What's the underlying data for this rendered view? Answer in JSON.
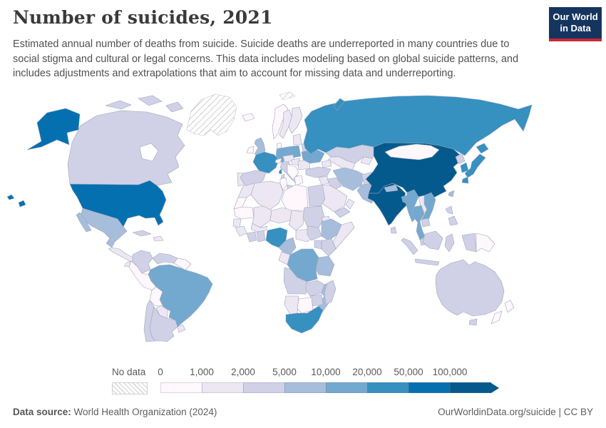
{
  "header": {
    "title": "Number of suicides, 2021",
    "subtitle": "Estimated annual number of deaths from suicide. Suicide deaths are underreported in many countries due to social stigma and cultural or legal concerns. This data includes modeling based on global suicide patterns, and includes adjustments and extrapolations that aim to account for missing data and underreporting.",
    "logo": {
      "line1": "Our World",
      "line2": "in Data",
      "bg_color": "#15355f",
      "accent_color": "#c5293b"
    }
  },
  "footer": {
    "source_label": "Data source:",
    "source_value": " World Health Organization (2024)",
    "attribution": "OurWorldinData.org/suicide | CC BY"
  },
  "chart_data": {
    "type": "choropleth_map",
    "title": "Number of suicides, 2021",
    "year": "2021",
    "metric": "Estimated annual number of deaths from suicide",
    "no_data_label": "No data",
    "legend_ticks": [
      "0",
      "1,000",
      "2,000",
      "5,000",
      "10,000",
      "20,000",
      "50,000",
      "100,000"
    ],
    "bins": [
      {
        "range": "0–1,000",
        "color": "#fff7fb"
      },
      {
        "range": "1,000–2,000",
        "color": "#ece7f2"
      },
      {
        "range": "2,000–5,000",
        "color": "#d0d1e6"
      },
      {
        "range": "5,000–10,000",
        "color": "#a6bddb"
      },
      {
        "range": "10,000–20,000",
        "color": "#74a9cf"
      },
      {
        "range": "20,000–50,000",
        "color": "#3690c0"
      },
      {
        "range": "50,000–100,000",
        "color": "#0570b0"
      },
      {
        "range": "100,000+",
        "color": "#045a8d"
      }
    ],
    "countries": {
      "united-states": 6,
      "canada": 2,
      "greenland": "no-data",
      "svalbard": "no-data",
      "mexico": 3,
      "guatemala-central-america": 1,
      "cuba": 2,
      "hispaniola": 1,
      "iceland": 0,
      "colombia": 2,
      "venezuela": 2,
      "guyanas": 0,
      "brazil": 4,
      "peru": 0,
      "ecuador": 1,
      "bolivia": 0,
      "paraguay": 1,
      "chile": 2,
      "argentina": 2,
      "uruguay": 1,
      "united-kingdom": 3,
      "ireland": 0,
      "norway": 0,
      "sweden": 1,
      "finland": 1,
      "denmark": 0,
      "baltics": 1,
      "belarus": 2,
      "poland": 4,
      "germany": 4,
      "france": 5,
      "spain": 2,
      "portugal": 1,
      "italy": 2,
      "switzerland": 0,
      "austria-czechia": 1,
      "hungary": 1,
      "romania": 1,
      "balkans": 0,
      "greece": 0,
      "ukraine": 4,
      "russia": 5,
      "kazakhstan": 2,
      "central-asia": 1,
      "central-asia-east": 1,
      "caucasus": 1,
      "turkey": 2,
      "syria": 1,
      "iraq": 2,
      "saudi-arabia": 1,
      "yemen": 2,
      "oman": 1,
      "iran": 3,
      "afghanistan": 2,
      "pakistan": 3,
      "india": 7,
      "sri-lanka": 2,
      "nepal": 3,
      "bangladesh": 4,
      "myanmar": 4,
      "laos": 1,
      "thailand": 4,
      "vietnam": 4,
      "cambodia": 2,
      "malaysia": 2,
      "china": 7,
      "mongolia": 0,
      "north-korea": 2,
      "south-korea": 5,
      "japan": 5,
      "taiwan": 3,
      "philippines": 2,
      "indonesia": 2,
      "papua-new-guinea": 0,
      "australia": 2,
      "new-zealand": 0,
      "morocco": 1,
      "western-sahara": 0,
      "algeria": 1,
      "tunisia": 0,
      "libya": 0,
      "egypt": 2,
      "mauritania": 0,
      "mali": 1,
      "niger": 1,
      "chad": 1,
      "sudan": 2,
      "eritrea": 1,
      "senegal": 1,
      "guinea": 1,
      "ivory-coast": 2,
      "ghana": 2,
      "burkina-faso": 1,
      "nigeria": 5,
      "cameroon": 3,
      "central-african-republic": 1,
      "south-sudan": 2,
      "ethiopia": 3,
      "somalia": 1,
      "kenya": 2,
      "uganda": 2,
      "congo-gabon": 1,
      "democratic-republic-of-congo": 4,
      "tanzania": 3,
      "angola": 2,
      "zambia": 2,
      "mozambique": 3,
      "zimbabwe": 2,
      "namibia": 1,
      "botswana": 0,
      "south-africa": 5,
      "madagascar": 2
    }
  }
}
